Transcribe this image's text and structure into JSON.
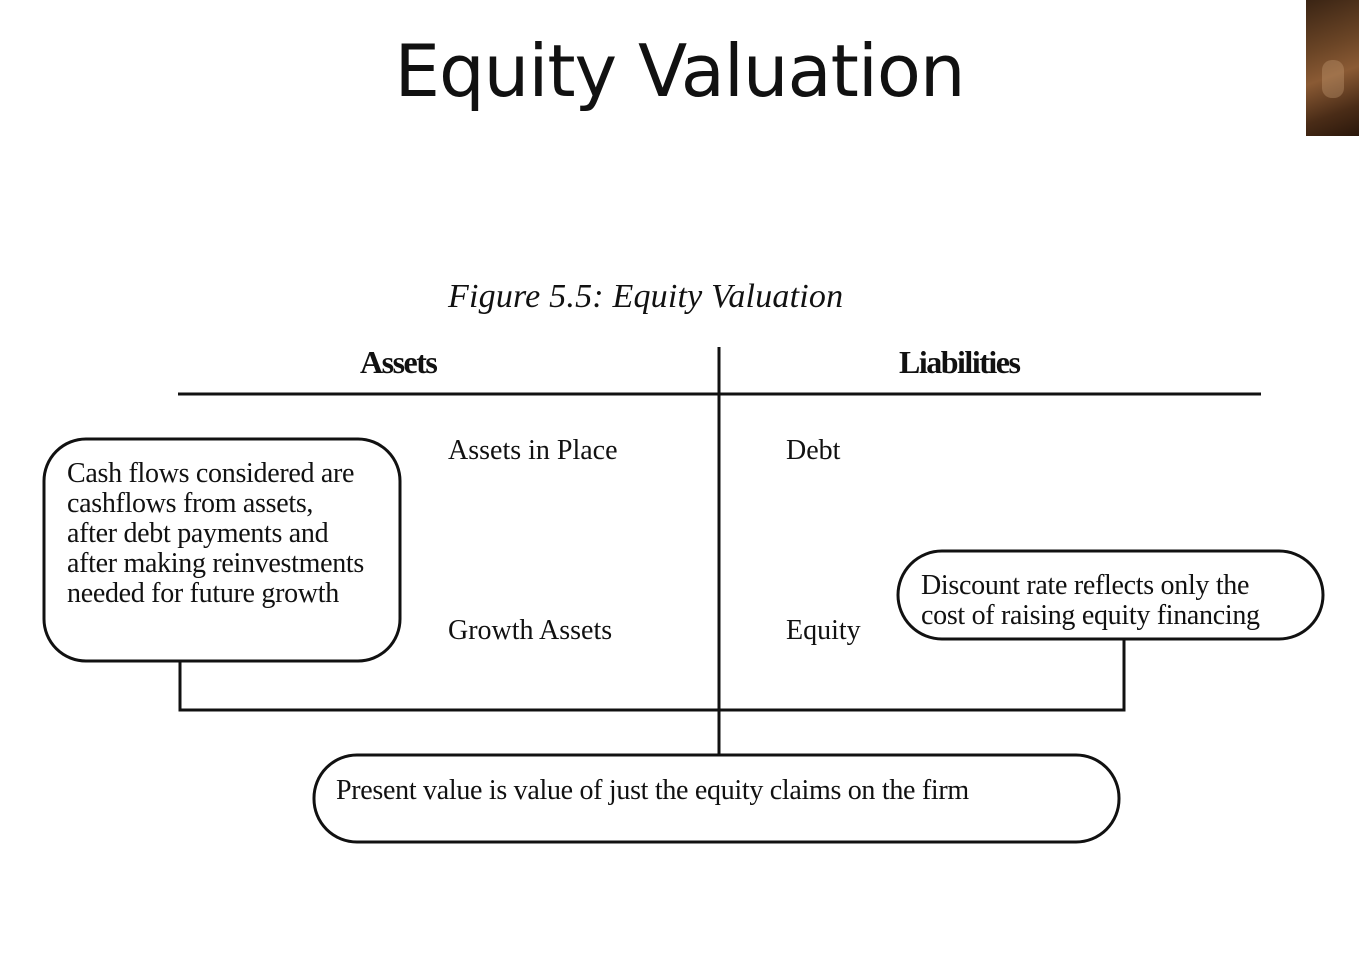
{
  "slide": {
    "title": "Equity Valuation"
  },
  "figure": {
    "caption": "Figure 5.5: Equity Valuation",
    "headers": {
      "assets": "Assets",
      "liabilities": "Liabilities"
    },
    "assets": {
      "in_place": "Assets in Place",
      "growth": "Growth Assets"
    },
    "liabilities": {
      "debt": "Debt",
      "equity": "Equity"
    },
    "callouts": {
      "cash_flows": {
        "lines": [
          "Cash flows considered are",
          "cashflows from assets,",
          "after debt payments and",
          "after making reinvestments",
          "needed for future growth"
        ]
      },
      "discount_rate": {
        "lines": [
          "Discount rate reflects only the",
          "cost of raising equity financing"
        ]
      },
      "present_value": {
        "text": "Present value is value of just the equity claims on the firm"
      }
    }
  },
  "colors": {
    "ink": "#111111",
    "background": "#ffffff"
  }
}
